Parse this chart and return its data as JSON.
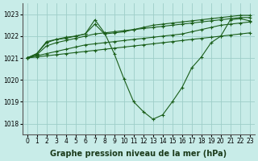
{
  "background_color": "#c8ece8",
  "grid_color": "#9ecec8",
  "line_color": "#1a5e1a",
  "marker": "+",
  "xlabel": "Graphe pression niveau de la mer (hPa)",
  "xlabel_fontsize": 7,
  "xlabel_fontweight": "bold",
  "xlabel_color": "#1a3a1a",
  "xlim": [
    -0.5,
    23.5
  ],
  "ylim": [
    1017.5,
    1023.5
  ],
  "yticks": [
    1018,
    1019,
    1020,
    1021,
    1022,
    1023
  ],
  "xticks": [
    0,
    1,
    2,
    3,
    4,
    5,
    6,
    7,
    8,
    9,
    10,
    11,
    12,
    13,
    14,
    15,
    16,
    17,
    18,
    19,
    20,
    21,
    22,
    23
  ],
  "tick_labelsize": 5.5,
  "lines": [
    {
      "x": [
        0,
        1,
        2,
        3,
        4,
        5,
        6,
        7,
        8,
        9,
        10,
        11,
        12,
        13,
        14,
        15,
        16,
        17,
        18,
        19,
        20,
        21,
        22,
        23
      ],
      "y": [
        1021.0,
        1021.05,
        1021.1,
        1021.15,
        1021.2,
        1021.25,
        1021.3,
        1021.35,
        1021.4,
        1021.45,
        1021.5,
        1021.55,
        1021.6,
        1021.65,
        1021.7,
        1021.75,
        1021.8,
        1021.85,
        1021.9,
        1021.95,
        1022.0,
        1022.05,
        1022.1,
        1022.15
      ]
    },
    {
      "x": [
        0,
        1,
        2,
        3,
        4,
        5,
        6,
        7,
        8,
        9,
        10,
        11,
        12,
        13,
        14,
        15,
        16,
        17,
        18,
        19,
        20,
        21,
        22,
        23
      ],
      "y": [
        1021.0,
        1021.1,
        1021.2,
        1021.3,
        1021.4,
        1021.5,
        1021.6,
        1021.65,
        1021.7,
        1021.75,
        1021.8,
        1021.85,
        1021.9,
        1021.95,
        1022.0,
        1022.05,
        1022.1,
        1022.2,
        1022.3,
        1022.4,
        1022.5,
        1022.55,
        1022.6,
        1022.65
      ]
    },
    {
      "x": [
        0,
        1,
        2,
        3,
        4,
        5,
        6,
        7,
        8,
        9,
        10,
        11,
        12,
        13,
        14,
        15,
        16,
        17,
        18,
        19,
        20,
        21,
        22,
        23
      ],
      "y": [
        1021.0,
        1021.15,
        1021.55,
        1021.7,
        1021.8,
        1021.9,
        1022.0,
        1022.1,
        1022.15,
        1022.2,
        1022.25,
        1022.3,
        1022.35,
        1022.4,
        1022.45,
        1022.5,
        1022.55,
        1022.6,
        1022.65,
        1022.7,
        1022.75,
        1022.8,
        1022.85,
        1022.85
      ]
    },
    {
      "x": [
        0,
        1,
        2,
        3,
        4,
        5,
        6,
        7,
        8,
        9,
        10,
        11,
        12,
        13,
        14,
        15,
        16,
        17,
        18,
        19,
        20,
        21,
        22,
        23
      ],
      "y": [
        1021.0,
        1021.2,
        1021.7,
        1021.85,
        1021.9,
        1022.0,
        1022.1,
        1022.55,
        1022.1,
        1022.15,
        1022.2,
        1022.3,
        1022.4,
        1022.5,
        1022.55,
        1022.6,
        1022.65,
        1022.7,
        1022.75,
        1022.8,
        1022.85,
        1022.9,
        1022.95,
        1022.95
      ]
    },
    {
      "x": [
        0,
        1,
        2,
        3,
        4,
        5,
        6,
        7,
        8,
        9,
        10,
        11,
        12,
        13,
        14,
        15,
        16,
        17,
        18,
        19,
        20,
        21,
        22,
        23
      ],
      "y": [
        1021.0,
        1021.2,
        1021.75,
        1021.85,
        1021.95,
        1022.0,
        1022.1,
        1022.75,
        1022.15,
        1021.2,
        1020.05,
        1019.0,
        1018.55,
        1018.2,
        1018.4,
        1019.0,
        1019.65,
        1020.55,
        1021.05,
        1021.7,
        1022.0,
        1022.75,
        1022.8,
        1022.7
      ]
    }
  ]
}
